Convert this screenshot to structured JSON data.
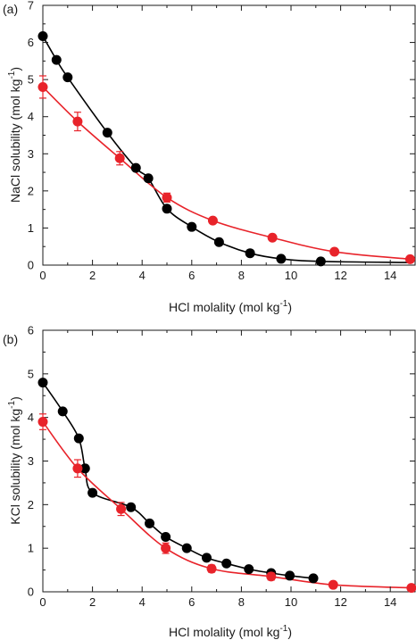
{
  "chart_data": [
    {
      "type": "scatter",
      "panel_label": "(a)",
      "xlabel_main": "HCl molality (mol kg",
      "xlabel_sup": "-1",
      "xlabel_end": ")",
      "ylabel_main": "NaCl solubility (mol kg",
      "ylabel_sup": "-1",
      "ylabel_end": ")",
      "xlim": [
        0,
        15
      ],
      "ylim": [
        0,
        7
      ],
      "x_ticks": [
        0,
        2,
        4,
        6,
        8,
        10,
        12,
        14
      ],
      "y_ticks": [
        0,
        1,
        2,
        3,
        4,
        5,
        6,
        7
      ],
      "series": [
        {
          "color": "#000000",
          "x": [
            0,
            0.55,
            1.0,
            2.6,
            3.75,
            4.25,
            5.0,
            6.0,
            7.1,
            8.35,
            9.6,
            11.2
          ],
          "y": [
            6.17,
            5.53,
            5.06,
            3.57,
            2.62,
            2.34,
            1.52,
            1.03,
            0.62,
            0.32,
            0.17,
            0.1
          ],
          "curve_x": [
            0,
            0.55,
            1.0,
            2.6,
            3.75,
            4.25,
            5.0,
            6.0,
            7.1,
            8.35,
            9.6,
            11.2,
            14.9
          ],
          "curve_y": [
            6.17,
            5.53,
            5.06,
            3.57,
            2.62,
            2.34,
            1.52,
            1.03,
            0.62,
            0.32,
            0.17,
            0.1,
            0.07
          ]
        },
        {
          "color": "#e8232a",
          "x": [
            0,
            1.4,
            3.1,
            5.0,
            6.85,
            9.25,
            11.75,
            14.8
          ],
          "y": [
            4.8,
            3.87,
            2.88,
            1.82,
            1.2,
            0.74,
            0.36,
            0.16
          ],
          "yerr": [
            0.3,
            0.25,
            0.18,
            0.12,
            0,
            0,
            0,
            0
          ],
          "curve_x": [
            0,
            1.4,
            3.1,
            5.0,
            6.85,
            9.25,
            11.75,
            14.8
          ],
          "curve_y": [
            4.8,
            3.87,
            2.88,
            1.82,
            1.2,
            0.74,
            0.36,
            0.16
          ]
        }
      ]
    },
    {
      "type": "scatter",
      "panel_label": "(b)",
      "xlabel_main": "HCl molality (mol kg",
      "xlabel_sup": "-1",
      "xlabel_end": ")",
      "ylabel_main": "KCl solubility (mol kg",
      "ylabel_sup": "-1",
      "ylabel_end": ")",
      "xlim": [
        0,
        15
      ],
      "ylim": [
        0,
        6
      ],
      "x_ticks": [
        0,
        2,
        4,
        6,
        8,
        10,
        12,
        14
      ],
      "y_ticks": [
        0,
        1,
        2,
        3,
        4,
        5,
        6
      ],
      "series": [
        {
          "color": "#000000",
          "x": [
            0,
            0.8,
            1.45,
            1.7,
            2.0,
            3.55,
            4.3,
            4.95,
            5.8,
            6.6,
            7.4,
            8.3,
            9.2,
            9.95,
            10.9
          ],
          "y": [
            4.8,
            4.14,
            3.52,
            2.83,
            2.27,
            1.94,
            1.57,
            1.26,
            1.0,
            0.78,
            0.65,
            0.52,
            0.43,
            0.37,
            0.31
          ],
          "curve_x": [
            0,
            0.8,
            1.45,
            1.7,
            2.0,
            3.55,
            4.3,
            4.95,
            5.8,
            6.6,
            7.4,
            8.3,
            9.2,
            9.95,
            10.9
          ],
          "curve_y": [
            4.8,
            4.14,
            3.52,
            2.83,
            2.27,
            1.94,
            1.57,
            1.26,
            1.0,
            0.78,
            0.65,
            0.52,
            0.43,
            0.37,
            0.31
          ]
        },
        {
          "color": "#e8232a",
          "x": [
            0,
            1.4,
            3.15,
            4.95,
            6.8,
            9.2,
            11.7,
            14.85
          ],
          "y": [
            3.9,
            2.83,
            1.9,
            1.0,
            0.53,
            0.35,
            0.16,
            0.09
          ],
          "yerr": [
            0.18,
            0.2,
            0.15,
            0.12,
            0.08,
            0.08,
            0,
            0
          ],
          "curve_x": [
            0,
            1.4,
            3.15,
            4.95,
            6.8,
            9.2,
            11.7,
            14.85
          ],
          "curve_y": [
            3.9,
            2.83,
            1.9,
            1.0,
            0.53,
            0.35,
            0.16,
            0.09
          ]
        }
      ]
    }
  ]
}
